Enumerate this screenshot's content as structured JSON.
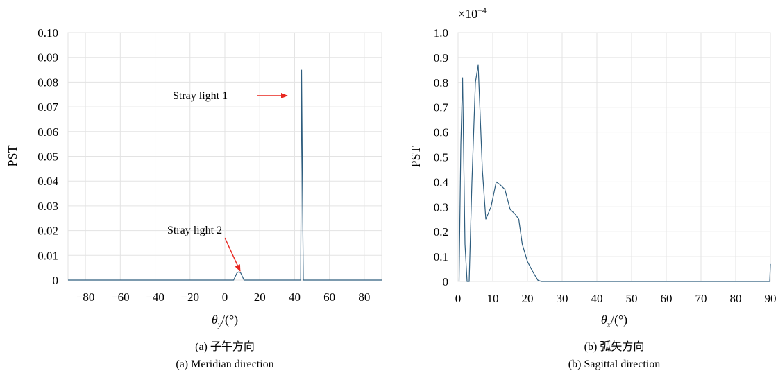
{
  "colors": {
    "line": "#2e5d7e",
    "grid": "#e3e3e3",
    "arrow": "#e8261f"
  },
  "chart_data": [
    {
      "type": "line",
      "panel": "a",
      "ylabel": "PST",
      "xlabel_symbol": "θ",
      "xlabel_sub": "y",
      "xlabel_unit": "/(°)",
      "xlim": [
        -90,
        90
      ],
      "ylim": [
        0,
        0.1
      ],
      "xticks": [
        -80,
        -60,
        -40,
        -20,
        0,
        20,
        40,
        60,
        80
      ],
      "xtick_labels": [
        "−80",
        "−60",
        "−40",
        "−20",
        "0",
        "20",
        "40",
        "60",
        "80"
      ],
      "yticks": [
        0,
        0.01,
        0.02,
        0.03,
        0.04,
        0.05,
        0.06,
        0.07,
        0.08,
        0.09,
        0.1
      ],
      "ytick_labels": [
        "0",
        "0.01",
        "0.02",
        "0.03",
        "0.04",
        "0.05",
        "0.06",
        "0.07",
        "0.08",
        "0.09",
        "0.10"
      ],
      "grid": true,
      "series": [
        {
          "x": [
            -90,
            5,
            6,
            7,
            8,
            9,
            10,
            11,
            43.5,
            44,
            44.5,
            45,
            90
          ],
          "y": [
            0,
            0,
            0.0015,
            0.003,
            0.0033,
            0.003,
            0.0015,
            0,
            0,
            0.085,
            0.04,
            0,
            0
          ]
        }
      ],
      "annotations": [
        {
          "text": "Stray light 1",
          "at_x": 44,
          "at_y": 0.0735
        },
        {
          "text": "Stray light 2",
          "at_x": 8,
          "at_y": 0.0035
        }
      ],
      "caption_cn": "(a) 子午方向",
      "caption_en": "(a) Meridian direction"
    },
    {
      "type": "line",
      "panel": "b",
      "ylabel": "PST",
      "scale_label": "×10",
      "scale_exp": "−4",
      "xlabel_symbol": "θ",
      "xlabel_sub": "x",
      "xlabel_unit": "/(°)",
      "xlim": [
        0,
        90
      ],
      "ylim": [
        0,
        1.0
      ],
      "xticks": [
        0,
        10,
        20,
        30,
        40,
        50,
        60,
        70,
        80,
        90
      ],
      "xtick_labels": [
        "0",
        "10",
        "20",
        "30",
        "40",
        "50",
        "60",
        "70",
        "80",
        "90"
      ],
      "yticks": [
        0,
        0.1,
        0.2,
        0.3,
        0.4,
        0.5,
        0.6,
        0.7,
        0.8,
        0.9,
        1.0
      ],
      "ytick_labels": [
        "0",
        "0.1",
        "0.2",
        "0.3",
        "0.4",
        "0.5",
        "0.6",
        "0.7",
        "0.8",
        "0.9",
        "1.0"
      ],
      "grid": true,
      "series": [
        {
          "x": [
            0.3,
            0.8,
            1.3,
            2.0,
            2.6,
            3.2,
            4.0,
            5.0,
            5.8,
            7.0,
            8.0,
            9.5,
            11.0,
            12.0,
            13.5,
            15.0,
            16.5,
            17.5,
            18.5,
            20.0,
            21.5,
            23.0,
            24.0,
            89.8,
            90
          ],
          "y": [
            0,
            0.55,
            0.82,
            0.15,
            0,
            0,
            0.4,
            0.8,
            0.87,
            0.45,
            0.25,
            0.3,
            0.4,
            0.39,
            0.37,
            0.29,
            0.27,
            0.25,
            0.15,
            0.08,
            0.04,
            0.005,
            0,
            0,
            0.07
          ]
        }
      ],
      "caption_cn": "(b) 弧矢方向",
      "caption_en": "(b) Sagittal direction"
    }
  ]
}
